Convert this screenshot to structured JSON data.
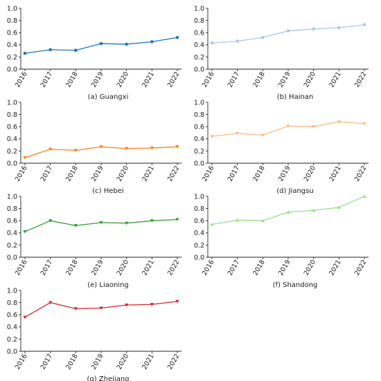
{
  "chart_data": [
    {
      "type": "line",
      "caption": "(a) Guangxi",
      "color": "#1f77b4",
      "marker": "circle",
      "x": [
        "2016",
        "2017",
        "2018",
        "2019",
        "2020",
        "2021",
        "2022"
      ],
      "values": [
        0.26,
        0.32,
        0.31,
        0.42,
        0.41,
        0.45,
        0.52
      ],
      "yticks": [
        "0.0",
        "0.2",
        "0.4",
        "0.6",
        "0.8",
        "1.0"
      ],
      "ylim": [
        0,
        1.0
      ],
      "grid": false
    },
    {
      "type": "line",
      "caption": "(b) Hainan",
      "color": "#aec7e8",
      "marker": "circle",
      "x": [
        "2016",
        "2017",
        "2018",
        "2019",
        "2020",
        "2021",
        "2022"
      ],
      "values": [
        0.43,
        0.46,
        0.52,
        0.63,
        0.66,
        0.68,
        0.73
      ],
      "yticks": [
        "0.0",
        "0.2",
        "0.4",
        "0.6",
        "0.8",
        "1.0"
      ],
      "ylim": [
        0,
        1.0
      ],
      "grid": false
    },
    {
      "type": "line",
      "caption": "(c) Hebei",
      "color": "#ff7f0e",
      "marker": "triangle-down",
      "x": [
        "2016",
        "2017",
        "2018",
        "2019",
        "2020",
        "2021",
        "2022"
      ],
      "values": [
        0.09,
        0.23,
        0.21,
        0.27,
        0.24,
        0.25,
        0.27
      ],
      "yticks": [
        "0.0",
        "0.2",
        "0.4",
        "0.6",
        "0.8",
        "1.0"
      ],
      "ylim": [
        0,
        1.0
      ],
      "grid": false
    },
    {
      "type": "line",
      "caption": "(d) Jiangsu",
      "color": "#ffbb78",
      "marker": "triangle-down",
      "x": [
        "2016",
        "2017",
        "2018",
        "2019",
        "2020",
        "2021",
        "2022"
      ],
      "values": [
        0.44,
        0.49,
        0.46,
        0.61,
        0.6,
        0.68,
        0.65
      ],
      "yticks": [
        "0.0",
        "0.2",
        "0.4",
        "0.6",
        "0.8",
        "1.0"
      ],
      "ylim": [
        0,
        1.0
      ],
      "grid": false
    },
    {
      "type": "line",
      "caption": "(e) Liaoning",
      "color": "#2ca02c",
      "marker": "triangle-down",
      "x": [
        "2016",
        "2017",
        "2018",
        "2019",
        "2020",
        "2021",
        "2022"
      ],
      "values": [
        0.42,
        0.6,
        0.52,
        0.57,
        0.56,
        0.6,
        0.62
      ],
      "yticks": [
        "0.0",
        "0.2",
        "0.4",
        "0.6",
        "0.8",
        "1.0"
      ],
      "ylim": [
        0,
        1.0
      ],
      "grid": false
    },
    {
      "type": "line",
      "caption": "(f) Shandong",
      "color": "#98df8a",
      "marker": "triangle-up",
      "x": [
        "2016",
        "2017",
        "2018",
        "2019",
        "2020",
        "2021",
        "2022"
      ],
      "values": [
        0.54,
        0.61,
        0.6,
        0.74,
        0.77,
        0.82,
        1.0
      ],
      "yticks": [
        "0.0",
        "0.2",
        "0.4",
        "0.6",
        "0.8",
        "1.0"
      ],
      "ylim": [
        0,
        1.0
      ],
      "grid": false
    },
    {
      "type": "line",
      "caption": "(g) Zhejiang",
      "color": "#d62728",
      "marker": "triangle-down",
      "x": [
        "2016",
        "2017",
        "2018",
        "2019",
        "2020",
        "2021",
        "2022"
      ],
      "values": [
        0.56,
        0.8,
        0.7,
        0.71,
        0.76,
        0.77,
        0.82
      ],
      "yticks": [
        "0.0",
        "0.2",
        "0.4",
        "0.6",
        "0.8",
        "1.0"
      ],
      "ylim": [
        0,
        1.0
      ],
      "grid": false
    }
  ]
}
